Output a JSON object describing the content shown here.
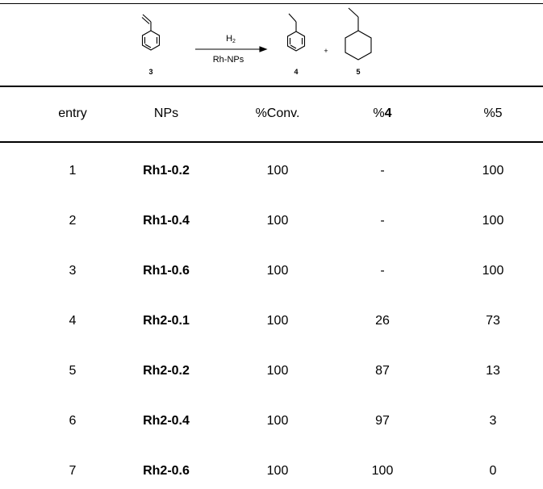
{
  "scheme": {
    "reactant_label": "3",
    "reagent_top_base": "H",
    "reagent_top_sub": "2",
    "reagent_bottom": "Rh-NPs",
    "product1_label": "4",
    "plus": "+",
    "product2_label": "5"
  },
  "table": {
    "headers": [
      {
        "text": "entry",
        "bold": false
      },
      {
        "text": "NPs",
        "bold": false
      },
      {
        "text": "%Conv.",
        "bold": false
      },
      {
        "prefix": "%",
        "strong": "4"
      },
      {
        "text": "%5",
        "bold": false
      }
    ],
    "rows": [
      {
        "entry": "1",
        "nps": "Rh1-0.2",
        "conv": "100",
        "p4": "-",
        "p5": "100"
      },
      {
        "entry": "2",
        "nps": "Rh1-0.4",
        "conv": "100",
        "p4": "-",
        "p5": "100"
      },
      {
        "entry": "3",
        "nps": "Rh1-0.6",
        "conv": "100",
        "p4": "-",
        "p5": "100"
      },
      {
        "entry": "4",
        "nps": "Rh2-0.1",
        "conv": "100",
        "p4": "26",
        "p5": "73"
      },
      {
        "entry": "5",
        "nps": "Rh2-0.2",
        "conv": "100",
        "p4": "87",
        "p5": "13"
      },
      {
        "entry": "6",
        "nps": "Rh2-0.4",
        "conv": "100",
        "p4": "97",
        "p5": "3"
      },
      {
        "entry": "7",
        "nps": "Rh2-0.6",
        "conv": "100",
        "p4": "100",
        "p5": "0"
      }
    ]
  }
}
